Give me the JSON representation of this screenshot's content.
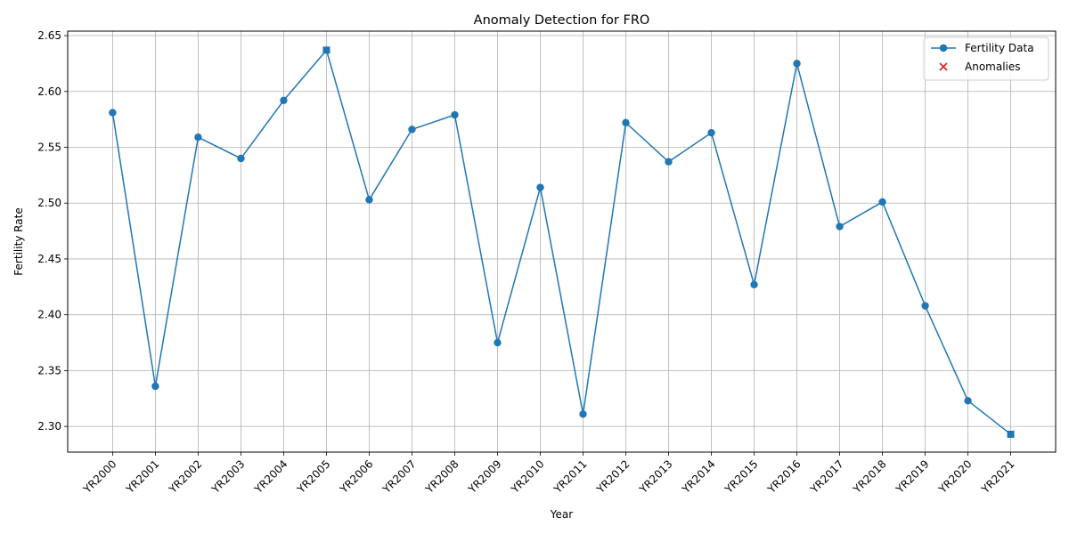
{
  "chart_data": {
    "type": "line",
    "title": "Anomaly Detection for FRO",
    "xlabel": "Year",
    "ylabel": "Fertility Rate",
    "categories": [
      "YR2000",
      "YR2001",
      "YR2002",
      "YR2003",
      "YR2004",
      "YR2005",
      "YR2006",
      "YR2007",
      "YR2008",
      "YR2009",
      "YR2010",
      "YR2011",
      "YR2012",
      "YR2013",
      "YR2014",
      "YR2015",
      "YR2016",
      "YR2017",
      "YR2018",
      "YR2019",
      "YR2020",
      "YR2021"
    ],
    "series": [
      {
        "name": "Fertility Data",
        "color": "#1f77b4",
        "marker": "circle",
        "values": [
          2.581,
          2.336,
          2.559,
          2.54,
          2.592,
          2.637,
          2.503,
          2.566,
          2.579,
          2.375,
          2.514,
          2.311,
          2.572,
          2.537,
          2.563,
          2.427,
          2.625,
          2.479,
          2.501,
          2.408,
          2.323,
          2.293
        ]
      },
      {
        "name": "Anomalies",
        "color": "#d62728",
        "marker": "x",
        "values": [
          null,
          null,
          null,
          null,
          null,
          2.637,
          null,
          null,
          null,
          null,
          null,
          null,
          null,
          null,
          null,
          null,
          null,
          null,
          null,
          null,
          null,
          2.293
        ]
      }
    ],
    "highlighted_points": [
      "YR2005",
      "YR2021"
    ],
    "ylim": [
      2.277,
      2.654
    ],
    "yticks": [
      2.3,
      2.35,
      2.4,
      2.45,
      2.5,
      2.55,
      2.6,
      2.65
    ],
    "grid": true,
    "legend_position": "top-right"
  }
}
